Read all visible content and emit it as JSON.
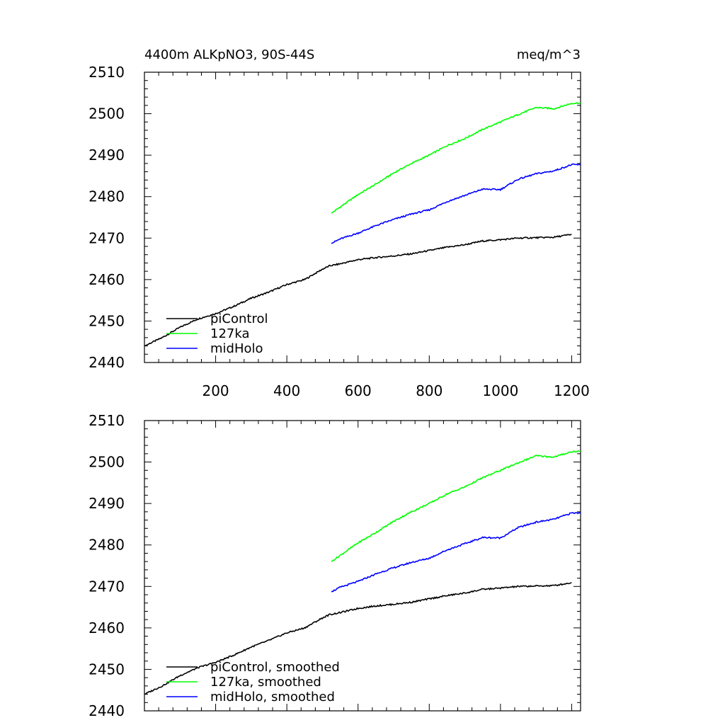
{
  "chart_data": [
    {
      "type": "line",
      "title_left": "4400m ALKpNO3, 90S-44S",
      "title_right": "meq/m^3",
      "xlim": [
        0,
        1225
      ],
      "ylim": [
        2440,
        2510
      ],
      "xticks": [
        200,
        400,
        600,
        800,
        1000,
        1200
      ],
      "xtick_labels": [
        "200",
        "400",
        "600",
        "800",
        "1000",
        "1200"
      ],
      "yticks": [
        2440,
        2450,
        2460,
        2470,
        2480,
        2490,
        2500,
        2510
      ],
      "ytick_labels": [
        "2440",
        "2450",
        "2460",
        "2470",
        "2480",
        "2490",
        "2500",
        "2510"
      ],
      "legend_position": "bottom-left",
      "series": [
        {
          "name": "piControl",
          "color": "#000000",
          "x": [
            0,
            50,
            100,
            150,
            200,
            250,
            300,
            350,
            400,
            450,
            500,
            520,
            550,
            600,
            650,
            700,
            750,
            800,
            850,
            900,
            950,
            1000,
            1050,
            1100,
            1150,
            1200
          ],
          "y": [
            2444,
            2446,
            2448.5,
            2450.5,
            2451.8,
            2453.5,
            2455.5,
            2457,
            2458.8,
            2460,
            2462.5,
            2463.3,
            2463.8,
            2464.8,
            2465.3,
            2465.7,
            2466.2,
            2467,
            2467.8,
            2468.4,
            2469.3,
            2469.6,
            2470,
            2470.1,
            2470.2,
            2470.9
          ]
        },
        {
          "name": "127ka",
          "color": "#00ff00",
          "x": [
            525,
            550,
            600,
            650,
            700,
            750,
            800,
            850,
            900,
            950,
            1000,
            1050,
            1100,
            1150,
            1200,
            1225
          ],
          "y": [
            2476,
            2477.5,
            2480.5,
            2483,
            2485.7,
            2488,
            2490,
            2492.3,
            2494,
            2496.2,
            2498,
            2499.8,
            2501.5,
            2501.2,
            2502.5,
            2502.6
          ]
        },
        {
          "name": "midHolo",
          "color": "#0000ff",
          "x": [
            525,
            550,
            600,
            650,
            700,
            750,
            800,
            850,
            900,
            950,
            1000,
            1050,
            1100,
            1150,
            1200,
            1225
          ],
          "y": [
            2468.7,
            2469.8,
            2471.2,
            2473,
            2474.5,
            2475.8,
            2476.8,
            2478.8,
            2480.3,
            2481.8,
            2481.7,
            2484.2,
            2485.5,
            2486.2,
            2487.7,
            2487.7
          ]
        }
      ]
    },
    {
      "type": "line",
      "xlim": [
        0,
        1225
      ],
      "ylim": [
        2440,
        2510
      ],
      "yticks": [
        2440,
        2450,
        2460,
        2470,
        2480,
        2490,
        2500,
        2510
      ],
      "ytick_labels": [
        "2440",
        "2450",
        "2460",
        "2470",
        "2480",
        "2490",
        "2500",
        "2510"
      ],
      "legend_position": "bottom-left",
      "series": [
        {
          "name": "piControl, smoothed",
          "color": "#000000",
          "x": [
            0,
            50,
            100,
            150,
            200,
            250,
            300,
            350,
            400,
            450,
            500,
            520,
            550,
            600,
            650,
            700,
            750,
            800,
            850,
            900,
            950,
            1000,
            1050,
            1100,
            1150,
            1200
          ],
          "y": [
            2444,
            2446,
            2448.5,
            2450.4,
            2451.7,
            2453.4,
            2455.4,
            2457,
            2458.8,
            2460,
            2462.4,
            2463.2,
            2463.7,
            2464.7,
            2465.3,
            2465.7,
            2466.2,
            2467,
            2467.8,
            2468.4,
            2469.3,
            2469.6,
            2470,
            2470.1,
            2470.2,
            2470.9
          ]
        },
        {
          "name": "127ka, smoothed",
          "color": "#00ff00",
          "x": [
            525,
            550,
            600,
            650,
            700,
            750,
            800,
            850,
            900,
            950,
            1000,
            1050,
            1100,
            1150,
            1200,
            1225
          ],
          "y": [
            2476,
            2477.5,
            2480.5,
            2483,
            2485.7,
            2488,
            2490,
            2492.3,
            2494,
            2496.2,
            2498,
            2499.8,
            2501.5,
            2501.2,
            2502.5,
            2502.6
          ]
        },
        {
          "name": "midHolo, smoothed",
          "color": "#0000ff",
          "x": [
            525,
            550,
            600,
            650,
            700,
            750,
            800,
            850,
            900,
            950,
            1000,
            1050,
            1100,
            1150,
            1200,
            1225
          ],
          "y": [
            2468.7,
            2469.8,
            2471.2,
            2473,
            2474.5,
            2475.8,
            2476.8,
            2478.8,
            2480.3,
            2481.8,
            2481.7,
            2484.2,
            2485.5,
            2486.2,
            2487.7,
            2487.7
          ]
        }
      ]
    }
  ]
}
